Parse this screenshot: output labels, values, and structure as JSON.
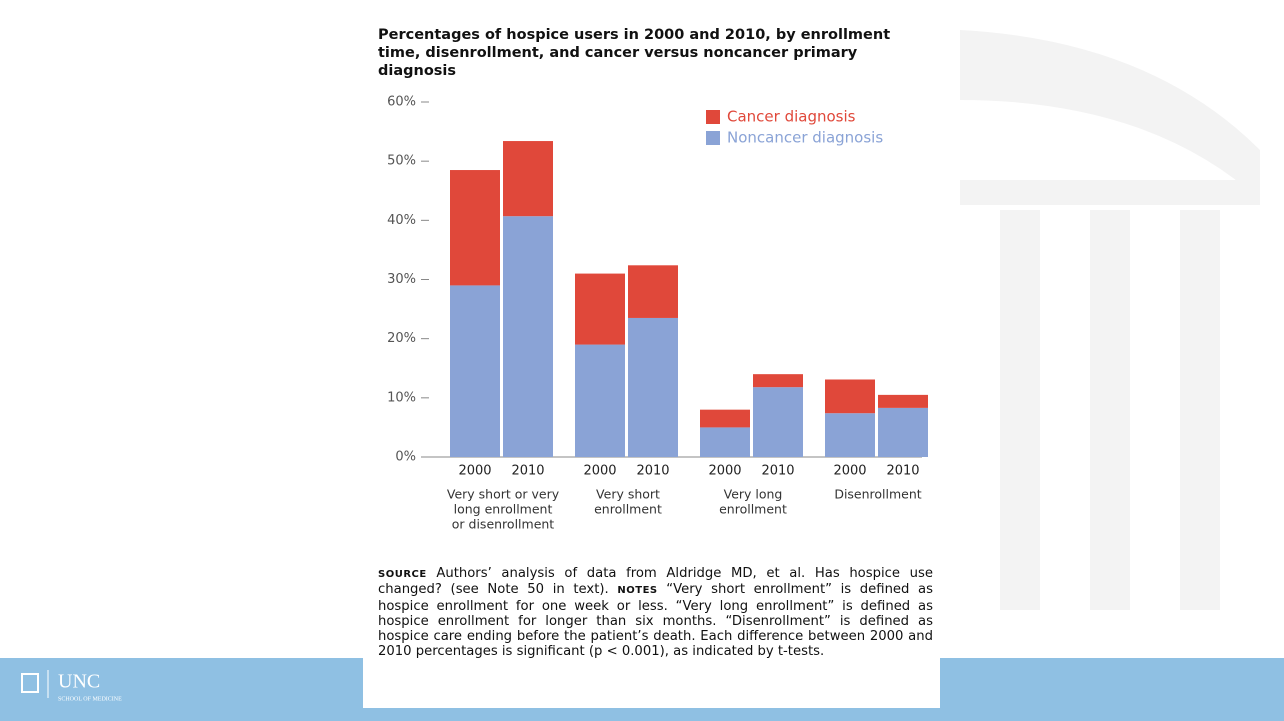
{
  "chart_data": {
    "type": "stacked_bar",
    "title": "Percentages of hospice users in 2000 and 2010, by enrollment time, disenrollment, and cancer versus noncancer primary diagnosis",
    "categories": [
      "2000",
      "2010",
      "2000",
      "2010",
      "2000",
      "2010",
      "2000",
      "2010"
    ],
    "group_labels": [
      [
        "Very short or very",
        "long enrollment",
        "or disenrollment"
      ],
      [
        "Very short",
        "enrollment"
      ],
      [
        "Very long",
        "enrollment"
      ],
      [
        "Disenrollment"
      ]
    ],
    "series": [
      {
        "name": "Cancer diagnosis",
        "color": "#e0483a",
        "values": [
          19.5,
          12.7,
          12,
          8.9,
          3,
          2.2,
          5.7,
          2.2
        ]
      },
      {
        "name": "Noncancer diagnosis",
        "color": "#8aa3d6",
        "values": [
          29,
          40.7,
          19,
          23.5,
          5,
          11.8,
          7.4,
          8.3
        ]
      }
    ],
    "ylim": [
      0,
      60
    ],
    "yticks": [
      {
        "value": 0,
        "label": "0%"
      },
      {
        "value": 10,
        "label": "10%"
      },
      {
        "value": 20,
        "label": "20%"
      },
      {
        "value": 30,
        "label": "30%"
      },
      {
        "value": 40,
        "label": "40%"
      },
      {
        "value": 50,
        "label": "50%"
      },
      {
        "value": 60,
        "label": "60%"
      }
    ],
    "legend": "upper right",
    "source_label": "SOURCE",
    "source_text": "Authors’ analysis of data from Aldridge MD, et al. Has hospice use changed? (see Note 50 in text).",
    "notes_label": "NOTES",
    "notes_text": "“Very short enrollment” is defined as hospice enrollment for one week or less. “Very long enrollment” is defined as hospice enrollment for longer than six months. “Disenrollment” is defined as hospice care ending before the patient’s death. Each difference between 2000 and 2010 percentages is significant (p < 0.001), as indicated by t-tests."
  },
  "footer": {
    "logo_text": "UNC",
    "logo_subtext": "SCHOOL OF MEDICINE"
  }
}
